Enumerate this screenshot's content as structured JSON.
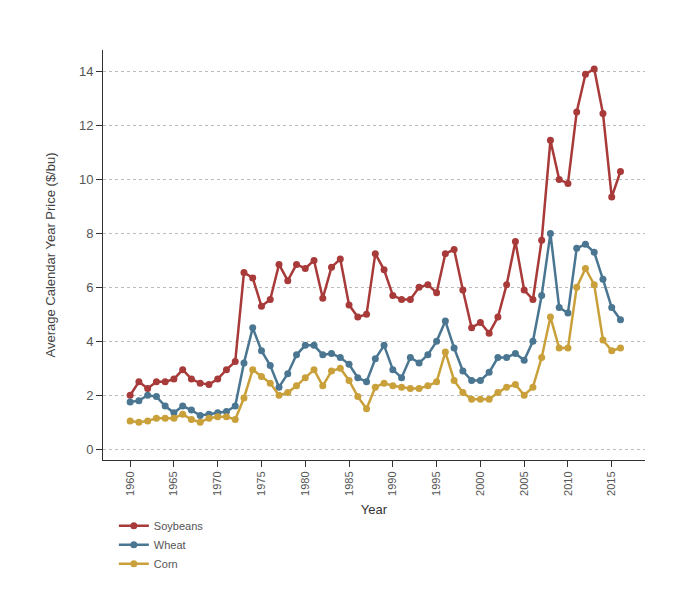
{
  "chart_data": {
    "type": "line",
    "x_label": "Year",
    "y_label": "Average Calendar Year Price ($/bu)",
    "x": [
      1960,
      1961,
      1962,
      1963,
      1964,
      1965,
      1966,
      1967,
      1968,
      1969,
      1970,
      1971,
      1972,
      1973,
      1974,
      1975,
      1976,
      1977,
      1978,
      1979,
      1980,
      1981,
      1982,
      1983,
      1984,
      1985,
      1986,
      1987,
      1988,
      1989,
      1990,
      1991,
      1992,
      1993,
      1994,
      1995,
      1996,
      1997,
      1998,
      1999,
      2000,
      2001,
      2002,
      2003,
      2004,
      2005,
      2006,
      2007,
      2008,
      2009,
      2010,
      2011,
      2012,
      2013,
      2014,
      2015,
      2016
    ],
    "series": [
      {
        "name": "Soybeans",
        "color": "#a83a3a",
        "values": [
          2.0,
          2.5,
          2.25,
          2.5,
          2.5,
          2.6,
          2.95,
          2.6,
          2.45,
          2.4,
          2.6,
          2.95,
          3.25,
          6.55,
          6.35,
          5.3,
          5.55,
          6.85,
          6.25,
          6.85,
          6.7,
          7.0,
          5.6,
          6.75,
          7.05,
          5.35,
          4.9,
          5.0,
          7.25,
          6.65,
          5.7,
          5.55,
          5.55,
          6.0,
          6.1,
          5.8,
          7.25,
          7.4,
          5.9,
          4.5,
          4.7,
          4.3,
          4.9,
          6.1,
          7.7,
          5.9,
          5.55,
          7.75,
          11.45,
          10.0,
          9.85,
          12.5,
          13.9,
          14.1,
          12.45,
          9.35,
          10.3
        ]
      },
      {
        "name": "Wheat",
        "color": "#4a7691",
        "values": [
          1.75,
          1.8,
          2.0,
          1.95,
          1.6,
          1.35,
          1.6,
          1.45,
          1.25,
          1.3,
          1.35,
          1.4,
          1.6,
          3.2,
          4.5,
          3.65,
          3.1,
          2.3,
          2.8,
          3.5,
          3.85,
          3.85,
          3.5,
          3.55,
          3.4,
          3.15,
          2.65,
          2.5,
          3.35,
          3.85,
          2.95,
          2.65,
          3.4,
          3.2,
          3.5,
          4.0,
          4.75,
          3.75,
          2.9,
          2.55,
          2.55,
          2.85,
          3.4,
          3.4,
          3.55,
          3.3,
          4.0,
          5.7,
          8.0,
          5.25,
          5.05,
          7.45,
          7.6,
          7.3,
          6.3,
          5.25,
          4.8
        ]
      },
      {
        "name": "Corn",
        "color": "#c9a03a",
        "values": [
          1.05,
          1.0,
          1.05,
          1.15,
          1.15,
          1.15,
          1.3,
          1.1,
          1.0,
          1.15,
          1.2,
          1.2,
          1.1,
          1.9,
          2.95,
          2.7,
          2.45,
          2.0,
          2.1,
          2.35,
          2.65,
          2.95,
          2.35,
          2.9,
          3.0,
          2.55,
          1.95,
          1.5,
          2.3,
          2.45,
          2.35,
          2.3,
          2.25,
          2.25,
          2.35,
          2.5,
          3.6,
          2.55,
          2.1,
          1.85,
          1.85,
          1.85,
          2.1,
          2.3,
          2.4,
          2.0,
          2.3,
          3.4,
          4.9,
          3.75,
          3.75,
          6.0,
          6.7,
          6.1,
          4.05,
          3.65,
          3.75
        ]
      }
    ],
    "xlim": [
      1956.9,
      2018.8
    ],
    "xticks": [
      1960,
      1965,
      1970,
      1975,
      1980,
      1985,
      1990,
      1995,
      2000,
      2005,
      2010,
      2015
    ],
    "ylim": [
      -0.4,
      14.8
    ],
    "yticks": [
      0,
      2,
      4,
      6,
      8,
      10,
      12,
      14
    ],
    "grid": true,
    "legend": "bottom-left",
    "marker": "circle",
    "line_style": "solid"
  }
}
